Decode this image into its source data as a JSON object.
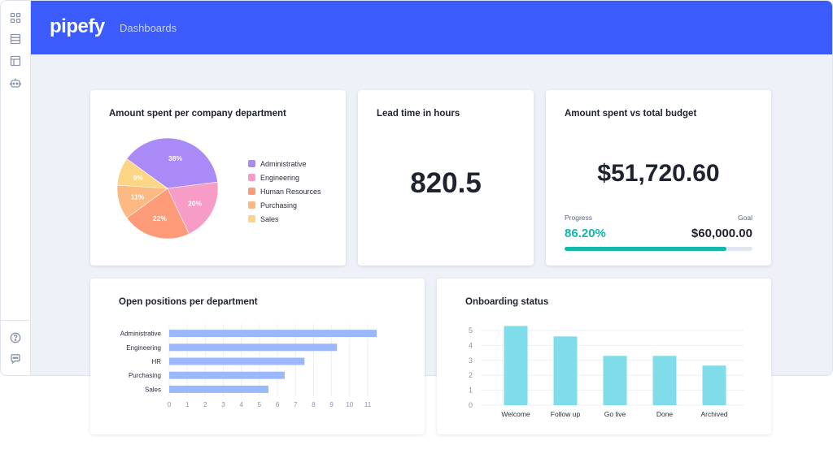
{
  "app": {
    "logo": "pipefy",
    "nav_title": "Dashboards",
    "sidebar_top_icons": [
      "grid-icon",
      "list-icon",
      "table-icon",
      "robot-icon"
    ],
    "sidebar_bottom_icons": [
      "help-icon",
      "chat-icon"
    ]
  },
  "cards": {
    "pie": {
      "title": "Amount spent per company department"
    },
    "lead": {
      "title": "Lead time in hours",
      "value": "820.5"
    },
    "budget": {
      "title": "Amount spent vs total budget",
      "amount": "$51,720.60",
      "progress_label": "Progress",
      "goal_label": "Goal",
      "progress_value": "86.20%",
      "goal_value": "$60,000.00",
      "progress_fraction": 0.862
    },
    "positions": {
      "title": "Open positions per department"
    },
    "onboard": {
      "title": "Onboarding status"
    }
  },
  "colors": {
    "brand": "#3b5bfd",
    "teal": "#14b8a6",
    "bar_blue": "#9ab8fb",
    "bar_cyan": "#7fdce9"
  },
  "chart_data": [
    {
      "type": "pie",
      "legend": "right",
      "categories": [
        "Administrative",
        "Engineering",
        "Human Resources",
        "Purchasing",
        "Sales"
      ],
      "values": [
        38,
        20,
        22,
        11,
        9
      ],
      "labels": [
        "38%",
        "20%",
        "22%",
        "11%",
        "9%"
      ],
      "colors": [
        "#a98af7",
        "#f79bc7",
        "#fd9a78",
        "#fdb982",
        "#fdd685"
      ]
    },
    {
      "type": "bar",
      "orientation": "horizontal",
      "categories": [
        "Administrative",
        "Engineering",
        "HR",
        "Purchasing",
        "Sales"
      ],
      "values": [
        11.5,
        9.3,
        7.5,
        6.4,
        5.5
      ],
      "xlim": [
        0,
        11
      ],
      "xticks": [
        "0",
        "1",
        "2",
        "3",
        "4",
        "5",
        "6",
        "7",
        "8",
        "9",
        "10",
        "11"
      ],
      "grid": true
    },
    {
      "type": "bar",
      "categories": [
        "Welcome",
        "Follow up",
        "Go live",
        "Done",
        "Archived"
      ],
      "values": [
        5.3,
        4.6,
        3.3,
        3.3,
        2.65
      ],
      "ylim": [
        0,
        5
      ],
      "yticks": [
        "0",
        "1",
        "2",
        "3",
        "4",
        "5"
      ],
      "grid": true
    }
  ]
}
